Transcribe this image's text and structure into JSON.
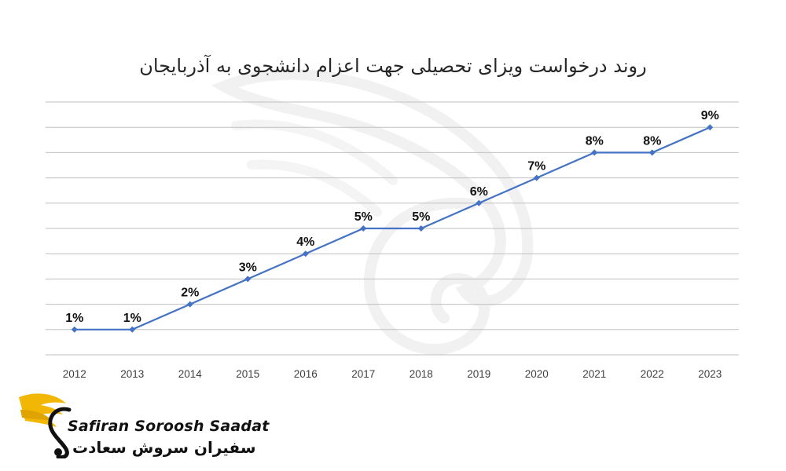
{
  "chart_data": {
    "type": "line",
    "title": "روند درخواست ویزای تحصیلی جهت اعزام دانشجوی به آذربایجان",
    "xlabel": "",
    "ylabel": "",
    "categories": [
      "2012",
      "2013",
      "2014",
      "2015",
      "2016",
      "2017",
      "2018",
      "2019",
      "2020",
      "2021",
      "2022",
      "2023"
    ],
    "series": [
      {
        "values": [
          1,
          1,
          2,
          3,
          4,
          5,
          5,
          6,
          7,
          8,
          8,
          9
        ],
        "data_labels": [
          "1%",
          "1%",
          "2%",
          "3%",
          "4%",
          "5%",
          "5%",
          "6%",
          "7%",
          "8%",
          "8%",
          "9%"
        ],
        "color": "#4472c4"
      }
    ],
    "ylim": [
      0,
      10
    ],
    "grid": true,
    "legend": "none",
    "y_axis_labels": false
  },
  "brand": {
    "name_en": "Safiran Soroosh Saadat",
    "name_fa": "سفیران سروش سعادت",
    "icon": "golden-wing-logo-icon",
    "colors": {
      "wing": "#f2b705",
      "text": "#111111"
    }
  },
  "watermark": {
    "icon": "wing-watermark-icon",
    "color": "#e8e8e8"
  }
}
